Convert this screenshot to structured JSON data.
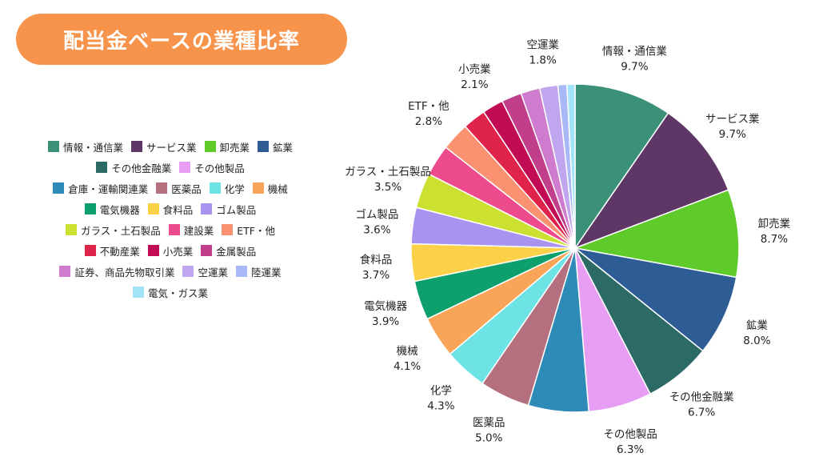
{
  "title": "配当金ベースの業種比率",
  "chart_data": {
    "type": "pie",
    "title": "配当金ベースの業種比率",
    "slices": [
      {
        "label": "情報・通信業",
        "value": 9.7,
        "value_label": "9.7%",
        "color": "#3a9178"
      },
      {
        "label": "サービス業",
        "value": 9.7,
        "value_label": "9.7%",
        "color": "#5e3767"
      },
      {
        "label": "卸売業",
        "value": 8.7,
        "value_label": "8.7%",
        "color": "#5fcb2b"
      },
      {
        "label": "鉱業",
        "value": 8.0,
        "value_label": "8.0%",
        "color": "#2e5d96"
      },
      {
        "label": "その他金融業",
        "value": 6.7,
        "value_label": "6.7%",
        "color": "#2c6a66"
      },
      {
        "label": "その他製品",
        "value": 6.3,
        "value_label": "6.3%",
        "color": "#e79df4"
      },
      {
        "label": "倉庫・運輸関連業",
        "value": 6.0,
        "value_label": "",
        "color": "#2e8bb8"
      },
      {
        "label": "医薬品",
        "value": 5.0,
        "value_label": "5.0%",
        "color": "#b5707f"
      },
      {
        "label": "化学",
        "value": 4.3,
        "value_label": "4.3%",
        "color": "#6de3e5"
      },
      {
        "label": "機械",
        "value": 4.1,
        "value_label": "4.1%",
        "color": "#f8a559"
      },
      {
        "label": "電気機器",
        "value": 3.9,
        "value_label": "3.9%",
        "color": "#0ea06c"
      },
      {
        "label": "食料品",
        "value": 3.7,
        "value_label": "3.7%",
        "color": "#fbd148"
      },
      {
        "label": "ゴム製品",
        "value": 3.6,
        "value_label": "3.6%",
        "color": "#a893ee"
      },
      {
        "label": "ガラス・土石製品",
        "value": 3.5,
        "value_label": "3.5%",
        "color": "#cbe030"
      },
      {
        "label": "建設業",
        "value": 3.1,
        "value_label": "",
        "color": "#ee4a8e"
      },
      {
        "label": "ETF・他",
        "value": 2.8,
        "value_label": "2.8%",
        "color": "#fa9170"
      },
      {
        "label": "不動産業",
        "value": 2.3,
        "value_label": "",
        "color": "#e0234a"
      },
      {
        "label": "小売業",
        "value": 2.1,
        "value_label": "2.1%",
        "color": "#c20b55"
      },
      {
        "label": "金属製品",
        "value": 2.0,
        "value_label": "",
        "color": "#c13f8a"
      },
      {
        "label": "証券、商品先物取引業",
        "value": 1.9,
        "value_label": "",
        "color": "#cf7ccf"
      },
      {
        "label": "空運業",
        "value": 1.8,
        "value_label": "1.8%",
        "color": "#c0a6ef"
      },
      {
        "label": "陸運業",
        "value": 0.9,
        "value_label": "",
        "color": "#a9b8f7"
      },
      {
        "label": "電気・ガス業",
        "value": 0.8,
        "value_label": "",
        "color": "#a3e3f7"
      }
    ],
    "legend_placement": "left"
  }
}
